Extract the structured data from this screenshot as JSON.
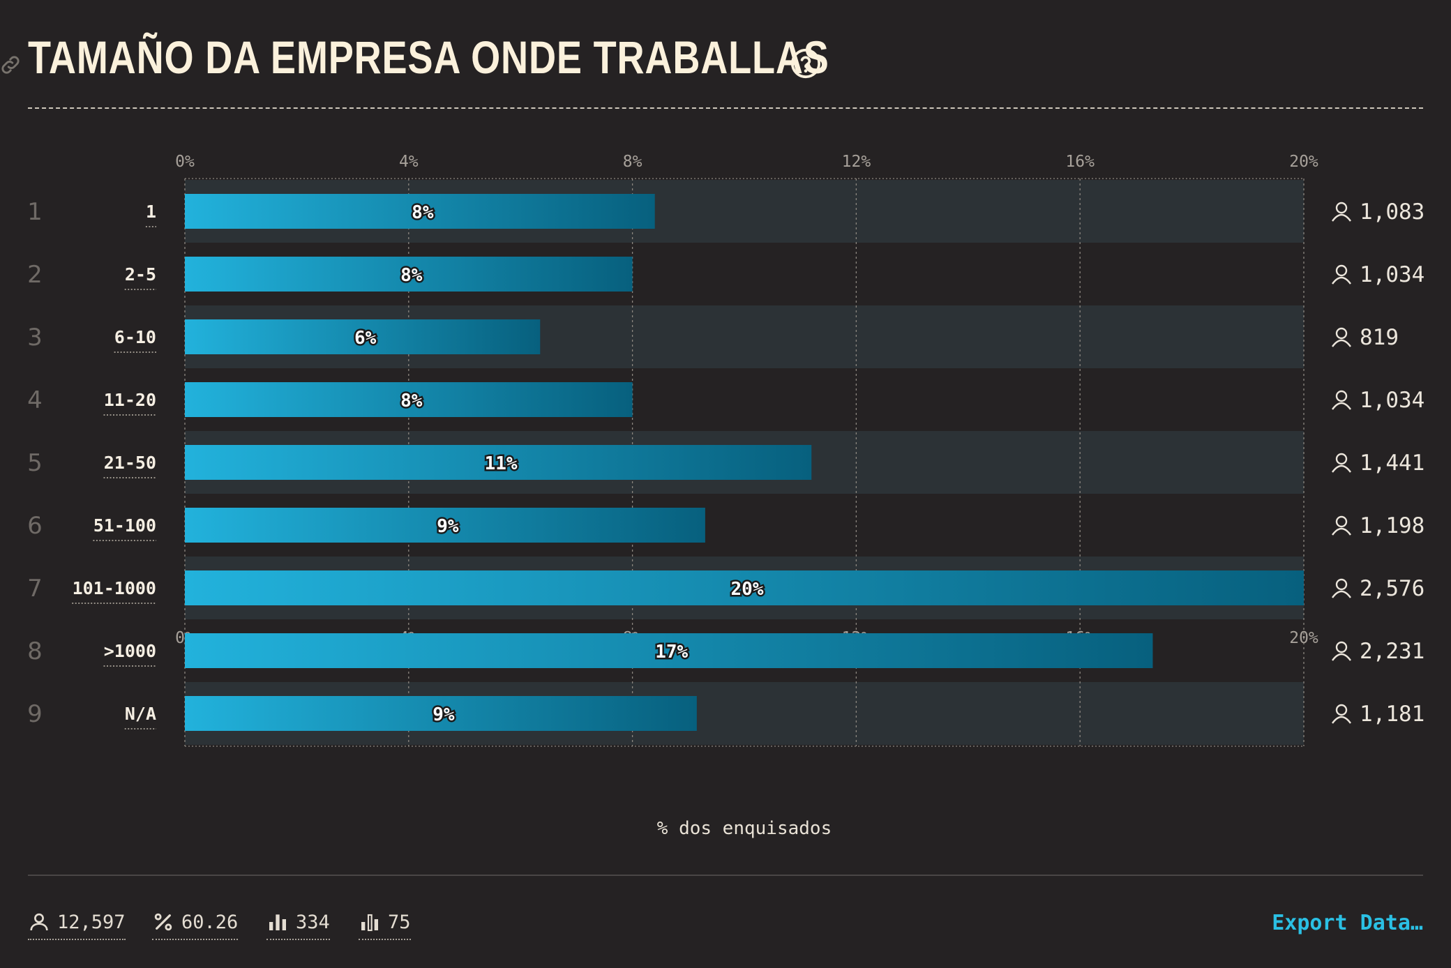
{
  "header": {
    "title": "TAMAÑO DA EMPRESA ONDE TRABALLAS"
  },
  "chart_data": {
    "type": "bar",
    "orientation": "horizontal",
    "xlabel": "% dos enquisados",
    "xlim": [
      0,
      20
    ],
    "xticks": [
      "0%",
      "4%",
      "8%",
      "12%",
      "16%",
      "20%"
    ],
    "grid": true,
    "ranks": [
      "1",
      "2",
      "3",
      "4",
      "5",
      "6",
      "7",
      "8",
      "9"
    ],
    "categories": [
      "1",
      "2-5",
      "6-10",
      "11-20",
      "21-50",
      "51-100",
      "101-1000",
      ">1000",
      "N/A"
    ],
    "values": [
      8.4,
      8.0,
      6.35,
      8.0,
      11.2,
      9.3,
      20.0,
      17.3,
      9.15
    ],
    "value_labels": [
      "8%",
      "8%",
      "6%",
      "8%",
      "11%",
      "9%",
      "20%",
      "17%",
      "9%"
    ],
    "counts": [
      "1,083",
      "1,034",
      "819",
      "1,034",
      "1,441",
      "1,198",
      "2,576",
      "2,231",
      "1,181"
    ],
    "colors": {
      "bar_start": "#22b2dc",
      "bar_end": "#07607e",
      "stripe": "#2c3236"
    }
  },
  "footer": {
    "respondents": "12,597",
    "percent": "60.26",
    "stat_a": "334",
    "stat_b": "75",
    "export_label": "Export Data…"
  }
}
